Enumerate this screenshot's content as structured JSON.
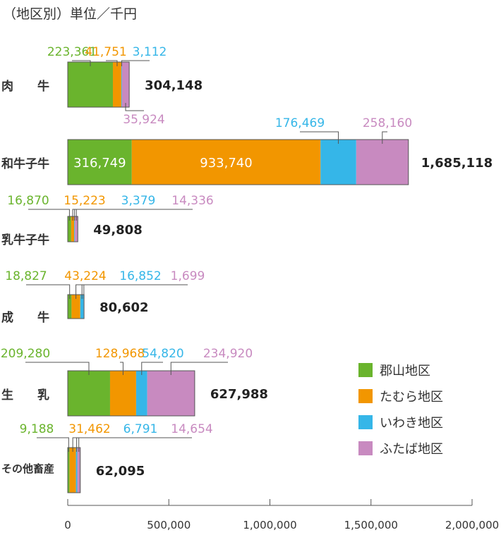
{
  "chart_data": {
    "type": "bar",
    "orientation": "horizontal",
    "stacked": true,
    "title": "（地区別）単位／千円",
    "categories": [
      "肉　　牛",
      "和牛子牛",
      "乳牛子牛",
      "成　　牛",
      "生　　乳",
      "その他畜産"
    ],
    "series": [
      {
        "name": "郡山地区",
        "color": "#6ab42d",
        "values": [
          223361,
          316749,
          16870,
          18827,
          209280,
          9188
        ]
      },
      {
        "name": "たむら地区",
        "color": "#f29600",
        "values": [
          41751,
          933740,
          15223,
          43224,
          128968,
          31462
        ]
      },
      {
        "name": "いわき地区",
        "color": "#35b6e8",
        "values": [
          3112,
          176469,
          3379,
          16852,
          54820,
          6791
        ]
      },
      {
        "name": "ふたば地区",
        "color": "#c88ac0",
        "values": [
          35924,
          258160,
          14336,
          1699,
          234920,
          14654
        ]
      }
    ],
    "totals": [
      "304,148",
      "1,685,118",
      "49,808",
      "80,602",
      "627,988",
      "62,095"
    ],
    "value_labels": [
      [
        "223,361",
        "41,751",
        "3,112",
        "35,924"
      ],
      [
        "316,749",
        "933,740",
        "176,469",
        "258,160"
      ],
      [
        "16,870",
        "15,223",
        "3,379",
        "14,336"
      ],
      [
        "18,827",
        "43,224",
        "16,852",
        "1,699"
      ],
      [
        "209,280",
        "128,968",
        "54,820",
        "234,920"
      ],
      [
        "9,188",
        "31,462",
        "6,791",
        "14,654"
      ]
    ],
    "x_ticks": [
      0,
      500000,
      1000000,
      1500000,
      2000000
    ],
    "x_tick_labels": [
      "0",
      "500,000",
      "1,000,000",
      "1,500,000",
      "2,000,000"
    ],
    "xlim": [
      0,
      2000000
    ],
    "legend_position": "bottom-right"
  }
}
